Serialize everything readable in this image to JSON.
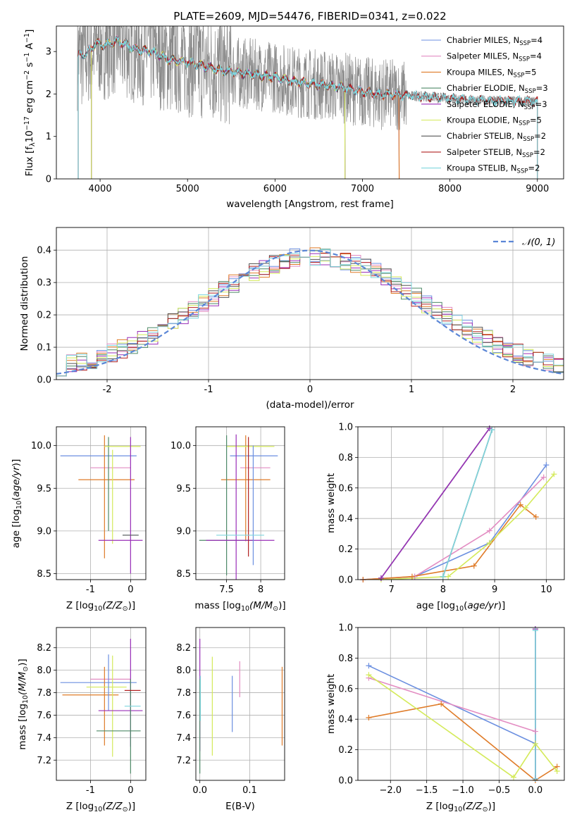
{
  "title": "PLATE=2609, MJD=54476, FIBERID=0341, z=0.022",
  "colors": {
    "chab_miles": "#6b8fe0",
    "salp_miles": "#e38cc2",
    "krou_miles": "#df7b28",
    "chab_elodie": "#4f8a68",
    "salp_elodie": "#9a2fb8",
    "krou_elodie": "#d4ea5a",
    "chab_stelib": "#555555",
    "salp_stelib": "#b22222",
    "krou_stelib": "#7fd6de",
    "data": "#8a8a8a",
    "gauss": "#5b86d6"
  },
  "chart_data": [
    {
      "id": "spectrum",
      "type": "line",
      "xlabel": "wavelength [Angstrom, rest frame]",
      "ylabel_main": "Flux [f",
      "ylabel_sub": "λ",
      "ylabel_rest": "10",
      "ylabel_exp": "−17",
      "ylabel_unit": " erg cm",
      "ylabel_exp2": "−2",
      "ylabel_s": " s",
      "ylabel_exp3": "−1",
      "ylabel_a": " A",
      "ylabel_exp4": "−1",
      "ylabel_end": "]",
      "xlim": [
        3500,
        9300
      ],
      "ylim": [
        0,
        3.6
      ],
      "xticks": [
        "4000",
        "5000",
        "6000",
        "7000",
        "8000",
        "9000"
      ],
      "yticks": [
        "0",
        "1",
        "2",
        "3"
      ],
      "legend_position": "top-right",
      "legend": [
        {
          "key": "chab_miles",
          "label": "Chabrier MILES, N",
          "sub": "SSP",
          "eq": "=4"
        },
        {
          "key": "salp_miles",
          "label": "Salpeter MILES, N",
          "sub": "SSP",
          "eq": "=4"
        },
        {
          "key": "krou_miles",
          "label": "Kroupa MILES, N",
          "sub": "SSP",
          "eq": "=5"
        },
        {
          "key": "chab_elodie",
          "label": "Chabrier ELODIE, N",
          "sub": "SSP",
          "eq": "=3"
        },
        {
          "key": "salp_elodie",
          "label": "Salpeter ELODIE, N",
          "sub": "SSP",
          "eq": "=3"
        },
        {
          "key": "krou_elodie",
          "label": "Kroupa ELODIE, N",
          "sub": "SSP",
          "eq": "=5"
        },
        {
          "key": "chab_stelib",
          "label": "Chabrier STELIB, N",
          "sub": "SSP",
          "eq": "=2"
        },
        {
          "key": "salp_stelib",
          "label": "Salpeter STELIB, N",
          "sub": "SSP",
          "eq": "=2"
        },
        {
          "key": "krou_stelib",
          "label": "Kroupa STELIB, N",
          "sub": "SSP",
          "eq": "=2"
        }
      ],
      "model_ranges": {
        "miles": [
          3750,
          7420
        ],
        "elodie": [
          3900,
          6800
        ],
        "stelib": [
          3750,
          9000
        ]
      },
      "continuum_x": [
        3750,
        3850,
        3950,
        4050,
        4200,
        4400,
        4600,
        4800,
        5000,
        5200,
        5400,
        5600,
        5800,
        6000,
        6200,
        6400,
        6600,
        6800,
        7000,
        7200,
        7400,
        7600,
        7800,
        8000,
        8200,
        8400,
        8600,
        8800,
        9000
      ],
      "continuum_y": [
        2.9,
        2.95,
        3.2,
        3.15,
        3.25,
        3.05,
        3.0,
        2.8,
        2.75,
        2.65,
        2.55,
        2.5,
        2.45,
        2.4,
        2.3,
        2.25,
        2.2,
        2.15,
        2.05,
        2.0,
        1.98,
        1.95,
        1.93,
        1.9,
        1.87,
        1.85,
        1.84,
        1.83,
        1.82
      ]
    },
    {
      "id": "residual_hist",
      "type": "line",
      "xlabel": "(data-model)/error",
      "ylabel": "Normed distribution",
      "xlim": [
        -2.5,
        2.5
      ],
      "ylim": [
        0,
        0.47
      ],
      "xticks": [
        -2,
        -1,
        0,
        1,
        2
      ],
      "yticks": [
        0.0,
        0.1,
        0.2,
        0.3,
        0.4
      ],
      "legend_position": "top-right",
      "gauss_label": "𝒩(0, 1)",
      "grid": true
    },
    {
      "id": "age_vs_Z",
      "type": "scatter",
      "xlabel_pre": "Z [log",
      "xlabel_sub": "10",
      "xlabel_post": "(Z/Z",
      "xlabel_sun": "⊙",
      "xlabel_end": ")]",
      "ylabel_pre": "age  [log",
      "ylabel_sub": "10",
      "ylabel_post": "(age/yr)]",
      "xlim": [
        -1.85,
        0.38
      ],
      "ylim": [
        8.43,
        10.22
      ],
      "xticks": [
        -1,
        0
      ],
      "yticks": [
        8.5,
        9.0,
        9.5,
        10.0
      ],
      "grid": true,
      "points": [
        {
          "c": "chab_miles",
          "x": -0.8,
          "xerr": 0.95,
          "y": 9.88
        },
        {
          "c": "salp_miles",
          "x": -0.5,
          "xerr": 0.5,
          "y": 9.74
        },
        {
          "c": "krou_miles",
          "x": -0.6,
          "xerr": 0.7,
          "y": 9.6
        },
        {
          "c": "krou_miles",
          "x": -0.65,
          "y": 9.4,
          "yerr": 0.72
        },
        {
          "c": "chab_elodie",
          "x": -0.55,
          "y": 9.55,
          "yerr": 0.55
        },
        {
          "c": "krou_elodie",
          "x": -0.45,
          "y": 9.4,
          "yerr": 0.55
        },
        {
          "c": "krou_elodie",
          "x": -0.2,
          "xerr": 0.45,
          "y": 9.99
        },
        {
          "c": "salp_elodie",
          "x": -0.25,
          "xerr": 0.55,
          "y": 8.89
        },
        {
          "c": "salp_elodie",
          "x": 0.0,
          "y": 9.3,
          "yerr": 0.8
        },
        {
          "c": "krou_stelib",
          "x": 0.0,
          "xerr": 0.2,
          "y": 8.95
        },
        {
          "c": "chab_stelib",
          "x": 0.0,
          "xerr": 0.2,
          "y": 8.95
        }
      ]
    },
    {
      "id": "age_vs_mass",
      "type": "scatter",
      "xlabel_pre": "mass [log",
      "xlabel_sub": "10",
      "xlabel_post": "(M/M",
      "xlabel_sun": "⊙",
      "xlabel_end": ")]",
      "xlim": [
        7.05,
        8.35
      ],
      "ylim": [
        8.43,
        10.22
      ],
      "xticks": [
        7.5,
        8.0
      ],
      "yticks": [
        8.5,
        9.0,
        9.5,
        10.0
      ],
      "grid": true,
      "points": [
        {
          "c": "chab_miles",
          "x": 7.9,
          "xerr": 0.35,
          "y": 9.88
        },
        {
          "c": "salp_miles",
          "x": 7.92,
          "xerr": 0.22,
          "y": 9.74
        },
        {
          "c": "krou_miles",
          "x": 7.78,
          "xerr": 0.36,
          "y": 9.6
        },
        {
          "c": "krou_miles",
          "x": 7.78,
          "y": 9.5,
          "yerr": 0.62
        },
        {
          "c": "krou_elodie",
          "x": 7.85,
          "xerr": 0.35,
          "y": 9.99
        },
        {
          "c": "chab_elodie",
          "x": 7.5,
          "y": 9.3,
          "yerr": 0.82
        },
        {
          "c": "chab_elodie",
          "x": 7.5,
          "xerr": 0.4,
          "y": 8.89
        },
        {
          "c": "salp_elodie",
          "x": 7.64,
          "y": 9.25,
          "yerr": 0.88
        },
        {
          "c": "salp_elodie",
          "x": 7.7,
          "xerr": 0.5,
          "y": 8.89
        },
        {
          "c": "chab_miles",
          "x": 7.89,
          "y": 9.3,
          "yerr": 0.7
        },
        {
          "c": "salp_stelib",
          "x": 7.82,
          "y": 9.4,
          "yerr": 0.7
        },
        {
          "c": "krou_stelib",
          "x": 7.7,
          "xerr": 0.35,
          "y": 8.95
        }
      ]
    },
    {
      "id": "mass_weight_vs_age",
      "type": "line",
      "xlabel_pre": "age  [log",
      "xlabel_sub": "10",
      "xlabel_post": "(age/yr)]",
      "ylabel": "mass weight",
      "xlim": [
        6.35,
        10.35
      ],
      "ylim": [
        0,
        1.0
      ],
      "xticks": [
        7,
        8,
        9,
        10
      ],
      "yticks": [
        0.0,
        0.2,
        0.4,
        0.6,
        0.8,
        1.0
      ],
      "grid": true,
      "series": [
        {
          "c": "chab_miles",
          "x": [
            6.45,
            7.45,
            8.9,
            10.0
          ],
          "y": [
            0.0,
            0.02,
            0.24,
            0.75
          ]
        },
        {
          "c": "salp_miles",
          "x": [
            6.45,
            7.45,
            8.9,
            9.95
          ],
          "y": [
            0.0,
            0.02,
            0.32,
            0.67
          ]
        },
        {
          "c": "krou_miles",
          "x": [
            6.45,
            7.4,
            8.6,
            9.5,
            9.8
          ],
          "y": [
            0.0,
            0.02,
            0.09,
            0.49,
            0.41
          ]
        },
        {
          "c": "krou_elodie",
          "x": [
            6.8,
            8.1,
            8.9,
            9.6,
            10.15
          ],
          "y": [
            0.0,
            0.02,
            0.24,
            0.47,
            0.69
          ]
        },
        {
          "c": "chab_elodie",
          "x": [
            6.8,
            8.9
          ],
          "y": [
            0.01,
            0.99
          ]
        },
        {
          "c": "salp_elodie",
          "x": [
            6.8,
            8.9
          ],
          "y": [
            0.01,
            0.99
          ]
        },
        {
          "c": "chab_stelib",
          "x": [
            8.0,
            8.95
          ],
          "y": [
            0.02,
            0.98
          ]
        },
        {
          "c": "krou_stelib",
          "x": [
            8.0,
            8.95
          ],
          "y": [
            0.02,
            0.98
          ]
        }
      ]
    },
    {
      "id": "mass_vs_Z",
      "type": "scatter",
      "xlabel_pre": "Z [log",
      "xlabel_sub": "10",
      "xlabel_post": "(Z/Z",
      "xlabel_sun": "⊙",
      "xlabel_end": ")]",
      "ylabel_pre": "mass [log",
      "ylabel_sub": "10",
      "ylabel_post": "(M/M",
      "ylabel_sun": "⊙",
      "ylabel_end": ")]",
      "xlim": [
        -1.85,
        0.38
      ],
      "ylim": [
        7.02,
        8.38
      ],
      "xticks": [
        -1,
        0
      ],
      "yticks": [
        7.2,
        7.4,
        7.6,
        7.8,
        8.0,
        8.2
      ],
      "grid": true,
      "points": [
        {
          "c": "chab_miles",
          "x": -0.8,
          "xerr": 0.95,
          "y": 7.89
        },
        {
          "c": "salp_miles",
          "x": -0.5,
          "xerr": 0.5,
          "y": 7.92
        },
        {
          "c": "krou_miles",
          "x": -1.0,
          "xerr": 0.7,
          "y": 7.78
        },
        {
          "c": "krou_miles",
          "x": -0.65,
          "y": 7.68,
          "yerr": 0.35
        },
        {
          "c": "krou_elodie",
          "x": -0.6,
          "xerr": 0.5,
          "y": 7.85
        },
        {
          "c": "krou_elodie",
          "x": -0.45,
          "y": 7.68,
          "yerr": 0.45
        },
        {
          "c": "chab_miles",
          "x": -0.55,
          "y": 7.89,
          "yerr": 0.25
        },
        {
          "c": "salp_elodie",
          "x": -0.25,
          "xerr": 0.55,
          "y": 7.64
        },
        {
          "c": "chab_elodie",
          "x": -0.3,
          "xerr": 0.55,
          "y": 7.46
        },
        {
          "c": "salp_elodie",
          "x": 0.0,
          "y": 7.8,
          "yerr": 0.48
        },
        {
          "c": "chab_elodie",
          "x": 0.0,
          "y": 7.5,
          "yerr": 0.42
        },
        {
          "c": "salp_stelib",
          "x": 0.05,
          "xerr": 0.2,
          "y": 7.82
        },
        {
          "c": "krou_stelib",
          "x": 0.05,
          "xerr": 0.2,
          "y": 7.68
        }
      ]
    },
    {
      "id": "mass_vs_ebv",
      "type": "scatter",
      "xlabel": "E(B-V)",
      "xlim": [
        -0.008,
        0.17
      ],
      "ylim": [
        7.02,
        8.38
      ],
      "xticks": [
        "0.0",
        "0.1"
      ],
      "yticks": [
        7.2,
        7.4,
        7.6,
        7.8,
        8.0,
        8.2
      ],
      "grid": true,
      "points": [
        {
          "c": "salp_elodie",
          "x": 0.0,
          "y": 7.78,
          "yerr": 0.5
        },
        {
          "c": "chab_elodie",
          "x": 0.0,
          "y": 7.5,
          "yerr": 0.42
        },
        {
          "c": "krou_stelib",
          "x": 0.001,
          "y": 7.75,
          "yerr": 0.2
        },
        {
          "c": "krou_elodie",
          "x": 0.025,
          "y": 7.68,
          "yerr": 0.44
        },
        {
          "c": "chab_miles",
          "x": 0.065,
          "y": 7.7,
          "yerr": 0.25
        },
        {
          "c": "salp_miles",
          "x": 0.08,
          "y": 7.92,
          "yerr": 0.16
        },
        {
          "c": "krou_miles",
          "x": 0.165,
          "y": 7.68,
          "yerr": 0.35
        }
      ]
    },
    {
      "id": "mass_weight_vs_Z",
      "type": "line",
      "xlabel_pre": "Z [log",
      "xlabel_sub": "10",
      "xlabel_post": "(Z/Z",
      "xlabel_sun": "⊙",
      "xlabel_end": ")]",
      "ylabel": "mass weight",
      "xlim": [
        -2.45,
        0.4
      ],
      "ylim": [
        0,
        1.0
      ],
      "xticks": [
        "−2.0",
        "−1.5",
        "−1.0",
        "−0.5",
        "0.0"
      ],
      "xtick_vals": [
        -2.0,
        -1.5,
        -1.0,
        -0.5,
        0.0
      ],
      "yticks": [
        0.0,
        0.2,
        0.4,
        0.6,
        0.8,
        1.0
      ],
      "grid": true,
      "series": [
        {
          "c": "chab_miles",
          "x": [
            -2.3,
            0.0,
            0.0
          ],
          "y": [
            0.75,
            0.24,
            0.01
          ]
        },
        {
          "c": "salp_miles",
          "x": [
            -2.3,
            0.0
          ],
          "y": [
            0.67,
            0.32
          ]
        },
        {
          "c": "krou_miles",
          "x": [
            -2.3,
            -1.3,
            0.0,
            0.3
          ],
          "y": [
            0.41,
            0.5,
            0.0,
            0.09
          ]
        },
        {
          "c": "krou_elodie",
          "x": [
            -2.3,
            -0.3,
            0.0,
            0.3
          ],
          "y": [
            0.69,
            0.02,
            0.24,
            0.06
          ]
        },
        {
          "c": "chab_elodie",
          "x": [
            0.0,
            0.0
          ],
          "y": [
            0.01,
            0.99
          ]
        },
        {
          "c": "salp_elodie",
          "x": [
            0.0,
            0.0
          ],
          "y": [
            0.01,
            0.99
          ]
        },
        {
          "c": "krou_stelib",
          "x": [
            0.0,
            0.0
          ],
          "y": [
            0.01,
            0.98
          ]
        }
      ]
    }
  ]
}
